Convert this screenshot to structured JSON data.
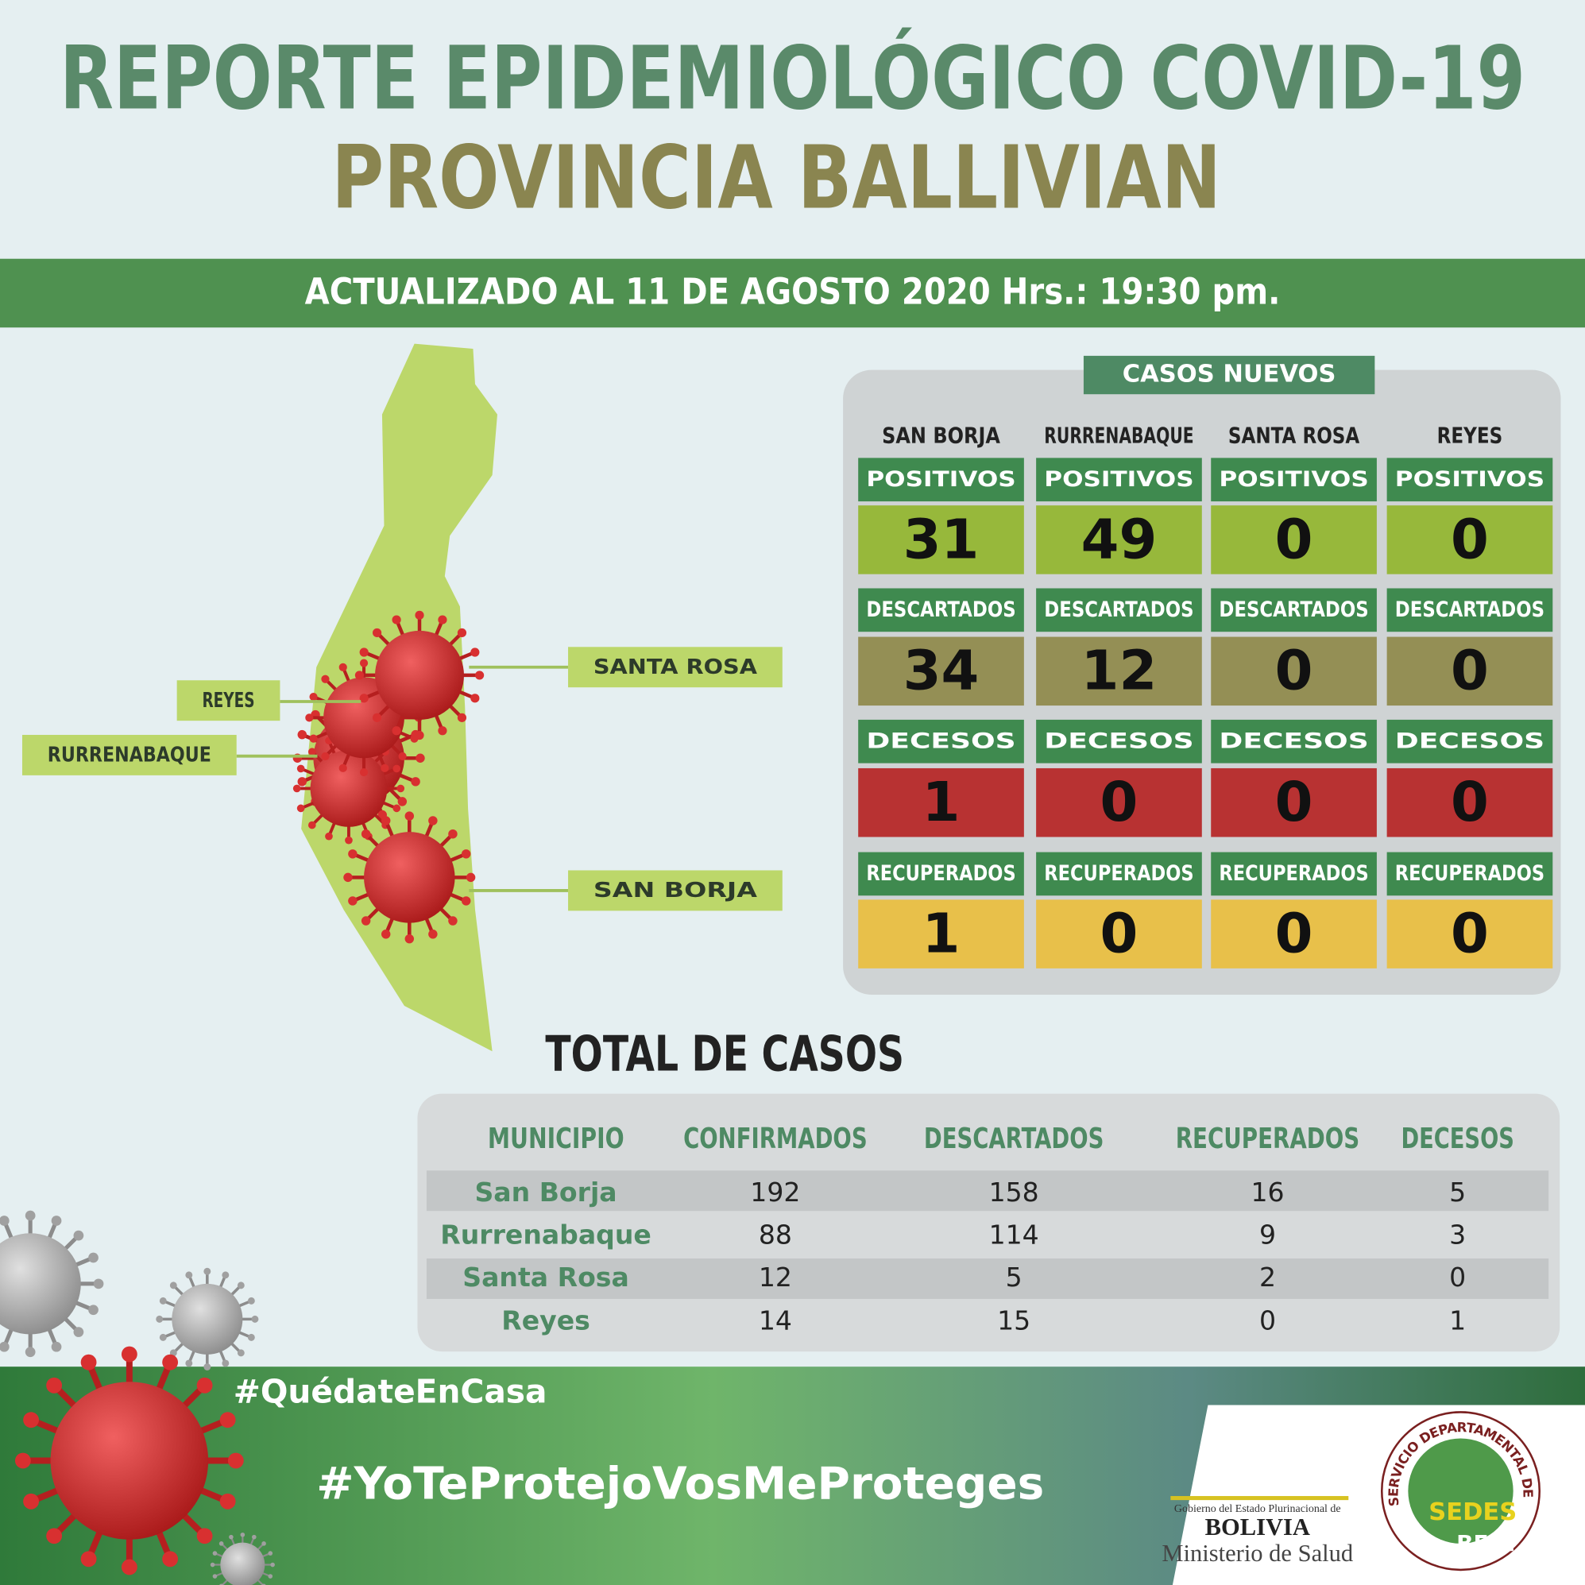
{
  "header": {
    "title": "REPORTE EPIDEMIOLÓGICO COVID-19",
    "subtitle": "PROVINCIA BALLIVIAN",
    "updated": "ACTUALIZADO AL 11 DE AGOSTO 2020 Hrs.: 19:30 pm."
  },
  "map": {
    "labels": [
      "SANTA ROSA",
      "REYES",
      "RURRENABAQUE",
      "SAN BORJA"
    ]
  },
  "new_cases": {
    "title": "CASOS NUEVOS",
    "columns": [
      {
        "municipio": "SAN BORJA",
        "rows": [
          {
            "label": "POSITIVOS",
            "value": 31
          },
          {
            "label": "DESCARTADOS",
            "value": 34
          },
          {
            "label": "DECESOS",
            "value": 1
          },
          {
            "label": "RECUPERADOS",
            "value": 1
          }
        ]
      },
      {
        "municipio": "RURRENABAQUE",
        "rows": [
          {
            "label": "POSITIVOS",
            "value": 49
          },
          {
            "label": "DESCARTADOS",
            "value": 12
          },
          {
            "label": "DECESOS",
            "value": 0
          },
          {
            "label": "RECUPERADOS",
            "value": 0
          }
        ]
      },
      {
        "municipio": "SANTA ROSA",
        "rows": [
          {
            "label": "POSITIVOS",
            "value": 0
          },
          {
            "label": "DESCARTADOS",
            "value": 0
          },
          {
            "label": "DECESOS",
            "value": 0
          },
          {
            "label": "RECUPERADOS",
            "value": 0
          }
        ]
      },
      {
        "municipio": "REYES",
        "rows": [
          {
            "label": "POSITIVOS",
            "value": 0
          },
          {
            "label": "DESCARTADOS",
            "value": 0
          },
          {
            "label": "DECESOS",
            "value": 0
          },
          {
            "label": "RECUPERADOS",
            "value": 0
          }
        ]
      }
    ]
  },
  "totals": {
    "title": "TOTAL DE CASOS",
    "headers": [
      "MUNICIPIO",
      "CONFIRMADOS",
      "DESCARTADOS",
      "RECUPERADOS",
      "DECESOS"
    ],
    "rows": [
      [
        "San Borja",
        192,
        158,
        16,
        5
      ],
      [
        "Rurrenabaque",
        88,
        114,
        9,
        3
      ],
      [
        "Santa Rosa",
        12,
        5,
        2,
        0
      ],
      [
        "Reyes",
        14,
        15,
        0,
        1
      ]
    ]
  },
  "footer": {
    "hashtag_1": "#QuédateEnCasa",
    "hashtag_2": "#YoTeProtejoVosMeProteges",
    "ministry": {
      "line1": "Gobierno del Estado Plurinacional de",
      "country": "BOLIVIA",
      "name": "Ministerio de Salud"
    },
    "sedes": {
      "ring": "SERVICIO DEPARTAMENTAL DE SALUD - BENI",
      "name": "SEDES",
      "region": "BENI"
    }
  }
}
